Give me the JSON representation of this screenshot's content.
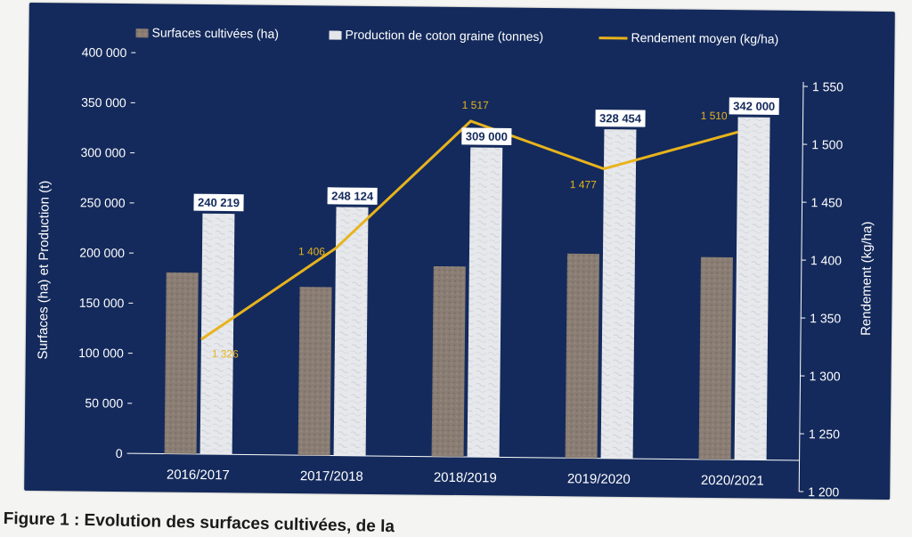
{
  "chart_data": {
    "type": "bar+line",
    "categories": [
      "2016/2017",
      "2017/2018",
      "2018/2019",
      "2019/2020",
      "2020/2021"
    ],
    "series": [
      {
        "name": "Surfaces cultivées (ha)",
        "type": "bar",
        "axis": "left",
        "values": [
          181000,
          168000,
          190000,
          204000,
          202000
        ],
        "color": "#8a7d73"
      },
      {
        "name": "Production de coton graine (tonnes)",
        "type": "bar",
        "axis": "left",
        "values": [
          240219,
          248124,
          309000,
          328454,
          342000
        ],
        "labels": [
          "240 219",
          "248 124",
          "309 000",
          "328 454",
          "342 000"
        ],
        "color": "#e4e6ea"
      },
      {
        "name": "Rendement moyen (kg/ha)",
        "type": "line",
        "axis": "right",
        "values": [
          1326,
          1406,
          1517,
          1477,
          1510
        ],
        "labels": [
          "1 326",
          "1 406",
          "1 517",
          "1 477",
          "1 510"
        ],
        "color": "#e8b31c"
      }
    ],
    "ylabel": "Surfaces (ha) et Production (t)",
    "y2label": "Rendement (kg/ha)",
    "ylim": [
      0,
      400000
    ],
    "y2lim": [
      1200,
      1550
    ],
    "yticks": [
      "0",
      "50 000",
      "100 000",
      "150 000",
      "200 000",
      "250 000",
      "300 000",
      "350 000",
      "400 000"
    ],
    "y2ticks": [
      "1 200",
      "1 250",
      "1 300",
      "1 350",
      "1 400",
      "1 450",
      "1 500",
      "1 550"
    ],
    "legend_position": "top",
    "grid": false
  },
  "caption": "Figure 1 : Evolution des surfaces cultivées, de la"
}
